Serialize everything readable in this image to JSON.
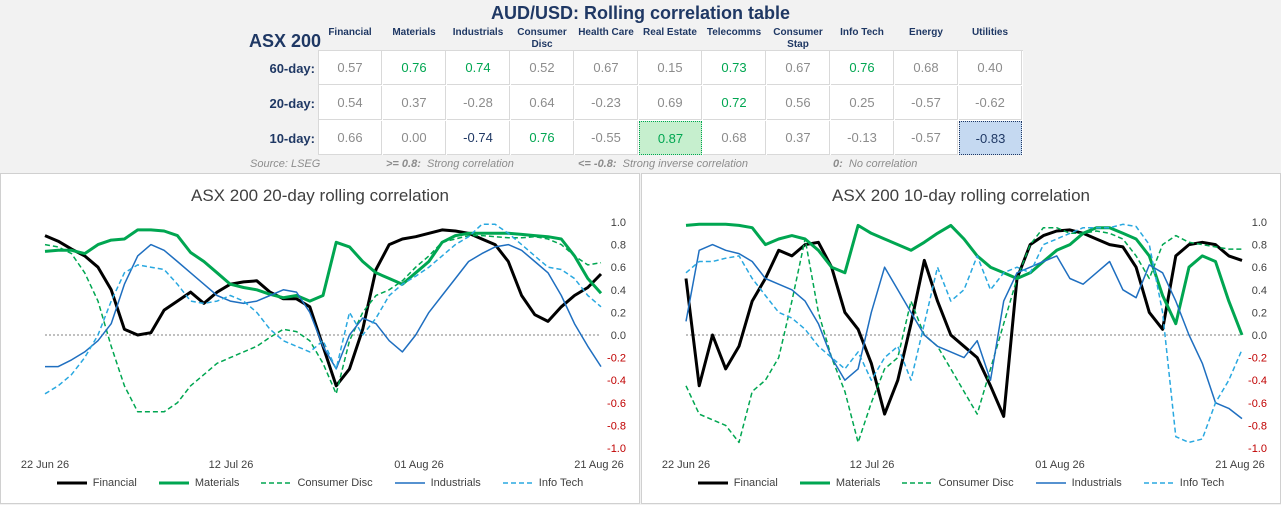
{
  "title": "AUD/USD: Rolling correlation table",
  "table": {
    "corner": "ASX 200",
    "columns": [
      "Financial",
      "Materials",
      "Industrials",
      "Consumer Disc",
      "Health Care",
      "Real Estate",
      "Telecomms",
      "Consumer Stap",
      "Info Tech",
      "Energy",
      "Utilities"
    ],
    "rows": [
      {
        "label": "60-day:",
        "values": [
          "0.57",
          "0.76",
          "0.74",
          "0.52",
          "0.67",
          "0.15",
          "0.73",
          "0.67",
          "0.76",
          "0.68",
          "0.40"
        ]
      },
      {
        "label": "20-day:",
        "values": [
          "0.54",
          "0.37",
          "-0.28",
          "0.64",
          "-0.23",
          "0.69",
          "0.72",
          "0.56",
          "0.25",
          "-0.57",
          "-0.62"
        ]
      },
      {
        "label": "10-day:",
        "values": [
          "0.66",
          "0.00",
          "-0.74",
          "0.76",
          "-0.55",
          "0.87",
          "0.68",
          "0.37",
          "-0.13",
          "-0.57",
          "-0.83"
        ]
      }
    ],
    "colors": {
      "neutral": "#8c8c8c",
      "positive": "#00a651",
      "negative": "#1f3864",
      "strong_pos_bg": "#c6efce",
      "strong_neg_bg": "#c5d9f1"
    }
  },
  "notes": {
    "source": "Source: LSEG",
    "strong_key": ">= 0.8:",
    "strong_text": "Strong correlation",
    "inverse_key": "<= -0.8:",
    "inverse_text": "Strong inverse correlation",
    "zero_key": "0:",
    "zero_text": "No correlation"
  },
  "chart_data": [
    {
      "type": "line",
      "title": "ASX 200 20-day rolling correlation",
      "x_ticks": [
        "22 Jun 26",
        "12 Jul 26",
        "01 Aug 26",
        "21 Aug 26"
      ],
      "ylim": [
        -1.0,
        1.0
      ],
      "y_ticks": [
        "1.0",
        "0.8",
        "0.6",
        "0.4",
        "0.2",
        "0.0",
        "-0.2",
        "-0.4",
        "-0.6",
        "-0.8",
        "-1.0"
      ],
      "series": [
        {
          "name": "Financial",
          "color": "#000000",
          "dash": false,
          "width": 3,
          "values": [
            0.88,
            0.83,
            0.76,
            0.7,
            0.6,
            0.4,
            0.05,
            0.0,
            0.02,
            0.22,
            0.3,
            0.38,
            0.28,
            0.38,
            0.45,
            0.47,
            0.48,
            0.38,
            0.32,
            0.32,
            0.25,
            -0.1,
            -0.45,
            -0.3,
            0.05,
            0.58,
            0.8,
            0.85,
            0.87,
            0.9,
            0.93,
            0.92,
            0.9,
            0.85,
            0.8,
            0.65,
            0.35,
            0.18,
            0.12,
            0.25,
            0.35,
            0.42,
            0.54
          ]
        },
        {
          "name": "Materials",
          "color": "#00a651",
          "dash": false,
          "width": 3,
          "values": [
            0.74,
            0.75,
            0.75,
            0.72,
            0.8,
            0.84,
            0.85,
            0.93,
            0.93,
            0.92,
            0.88,
            0.73,
            0.65,
            0.55,
            0.45,
            0.42,
            0.4,
            0.36,
            0.33,
            0.35,
            0.3,
            0.35,
            0.82,
            0.78,
            0.65,
            0.55,
            0.5,
            0.45,
            0.55,
            0.65,
            0.82,
            0.88,
            0.9,
            0.9,
            0.9,
            0.9,
            0.89,
            0.88,
            0.87,
            0.85,
            0.7,
            0.5,
            0.37
          ]
        },
        {
          "name": "Consumer Disc",
          "color": "#00a651",
          "dash": true,
          "width": 1.5,
          "values": [
            0.8,
            0.78,
            0.72,
            0.55,
            0.3,
            -0.1,
            -0.45,
            -0.68,
            -0.68,
            -0.68,
            -0.6,
            -0.45,
            -0.35,
            -0.25,
            -0.2,
            -0.15,
            -0.1,
            -0.02,
            0.05,
            0.03,
            -0.05,
            -0.25,
            -0.52,
            -0.05,
            0.2,
            0.35,
            0.4,
            0.48,
            0.6,
            0.7,
            0.82,
            0.85,
            0.88,
            0.88,
            0.87,
            0.86,
            0.86,
            0.87,
            0.85,
            0.8,
            0.7,
            0.62,
            0.64
          ]
        },
        {
          "name": "Industrials",
          "color": "#1f6fc0",
          "dash": false,
          "width": 1.5,
          "values": [
            -0.28,
            -0.28,
            -0.22,
            -0.15,
            -0.05,
            0.1,
            0.45,
            0.7,
            0.8,
            0.75,
            0.65,
            0.55,
            0.45,
            0.35,
            0.3,
            0.28,
            0.3,
            0.35,
            0.4,
            0.38,
            0.2,
            -0.1,
            -0.3,
            0.0,
            0.15,
            0.1,
            -0.05,
            -0.15,
            0.0,
            0.2,
            0.35,
            0.5,
            0.65,
            0.72,
            0.78,
            0.8,
            0.75,
            0.65,
            0.55,
            0.35,
            0.1,
            -0.1,
            -0.28
          ]
        },
        {
          "name": "Info Tech",
          "color": "#29a8e0",
          "dash": true,
          "width": 1.5,
          "values": [
            -0.52,
            -0.45,
            -0.35,
            -0.2,
            0.0,
            0.3,
            0.55,
            0.62,
            0.6,
            0.58,
            0.45,
            0.3,
            0.28,
            0.3,
            0.35,
            0.3,
            0.2,
            0.05,
            -0.05,
            -0.1,
            -0.15,
            -0.05,
            -0.3,
            0.2,
            0.0,
            0.15,
            0.35,
            0.45,
            0.52,
            0.6,
            0.7,
            0.8,
            0.87,
            0.98,
            0.98,
            0.9,
            0.8,
            0.7,
            0.6,
            0.58,
            0.5,
            0.35,
            0.25
          ]
        }
      ]
    },
    {
      "type": "line",
      "title": "ASX 200 10-day rolling correlation",
      "x_ticks": [
        "22 Jun 26",
        "12 Jul 26",
        "01 Aug 26",
        "21 Aug 26"
      ],
      "ylim": [
        -1.0,
        1.0
      ],
      "y_ticks": [
        "1.0",
        "0.8",
        "0.6",
        "0.4",
        "0.2",
        "0.0",
        "-0.2",
        "-0.4",
        "-0.6",
        "-0.8",
        "-1.0"
      ],
      "series": [
        {
          "name": "Financial",
          "color": "#000000",
          "dash": false,
          "width": 3,
          "values": [
            0.5,
            -0.45,
            0.0,
            -0.3,
            -0.1,
            0.3,
            0.5,
            0.75,
            0.7,
            0.8,
            0.82,
            0.6,
            0.2,
            0.05,
            -0.25,
            -0.7,
            -0.4,
            0.1,
            0.66,
            0.3,
            0.0,
            -0.1,
            -0.2,
            -0.45,
            -0.72,
            0.5,
            0.8,
            0.88,
            0.92,
            0.93,
            0.9,
            0.85,
            0.8,
            0.78,
            0.6,
            0.2,
            0.05,
            0.7,
            0.8,
            0.82,
            0.8,
            0.7,
            0.66
          ]
        },
        {
          "name": "Materials",
          "color": "#00a651",
          "dash": false,
          "width": 3,
          "values": [
            0.97,
            0.98,
            0.98,
            0.98,
            0.97,
            0.95,
            0.8,
            0.85,
            0.88,
            0.85,
            0.75,
            0.6,
            0.55,
            0.97,
            0.9,
            0.85,
            0.8,
            0.75,
            0.82,
            0.9,
            0.97,
            0.85,
            0.7,
            0.6,
            0.55,
            0.5,
            0.55,
            0.65,
            0.75,
            0.8,
            0.9,
            0.95,
            0.95,
            0.9,
            0.85,
            0.7,
            0.35,
            0.1,
            0.6,
            0.7,
            0.65,
            0.3,
            0.0
          ]
        },
        {
          "name": "Consumer Disc",
          "color": "#00a651",
          "dash": true,
          "width": 1.5,
          "values": [
            -0.45,
            -0.7,
            -0.75,
            -0.8,
            -0.95,
            -0.5,
            -0.4,
            -0.2,
            0.3,
            0.85,
            0.2,
            -0.2,
            -0.5,
            -0.95,
            -0.6,
            -0.3,
            -0.2,
            0.3,
            0.0,
            -0.1,
            -0.3,
            -0.5,
            -0.7,
            -0.3,
            0.1,
            0.5,
            0.8,
            0.95,
            0.95,
            0.9,
            0.9,
            0.92,
            0.9,
            0.85,
            0.7,
            0.5,
            0.8,
            0.88,
            0.82,
            0.8,
            0.78,
            0.76,
            0.76
          ]
        },
        {
          "name": "Industrials",
          "color": "#1f6fc0",
          "dash": false,
          "width": 1.5,
          "values": [
            0.12,
            0.75,
            0.8,
            0.75,
            0.72,
            0.65,
            0.5,
            0.45,
            0.4,
            0.3,
            0.1,
            -0.2,
            -0.4,
            -0.3,
            0.2,
            0.6,
            0.4,
            0.2,
            0.0,
            -0.1,
            -0.15,
            -0.2,
            -0.05,
            -0.4,
            0.3,
            0.55,
            0.6,
            0.65,
            0.7,
            0.5,
            0.45,
            0.55,
            0.65,
            0.4,
            0.33,
            0.62,
            0.55,
            0.3,
            0.0,
            -0.25,
            -0.6,
            -0.65,
            -0.74
          ]
        },
        {
          "name": "Info Tech",
          "color": "#29a8e0",
          "dash": true,
          "width": 1.5,
          "values": [
            0.55,
            0.65,
            0.65,
            0.68,
            0.7,
            0.5,
            0.35,
            0.2,
            0.15,
            0.05,
            -0.1,
            -0.2,
            -0.3,
            -0.15,
            -0.4,
            -0.2,
            -0.1,
            -0.4,
            0.1,
            0.6,
            0.3,
            0.4,
            0.7,
            0.4,
            0.55,
            0.6,
            0.55,
            0.8,
            0.85,
            0.9,
            0.95,
            0.95,
            0.95,
            0.98,
            0.96,
            0.8,
            0.2,
            -0.9,
            -0.95,
            -0.92,
            -0.6,
            -0.4,
            -0.13
          ]
        }
      ]
    }
  ]
}
